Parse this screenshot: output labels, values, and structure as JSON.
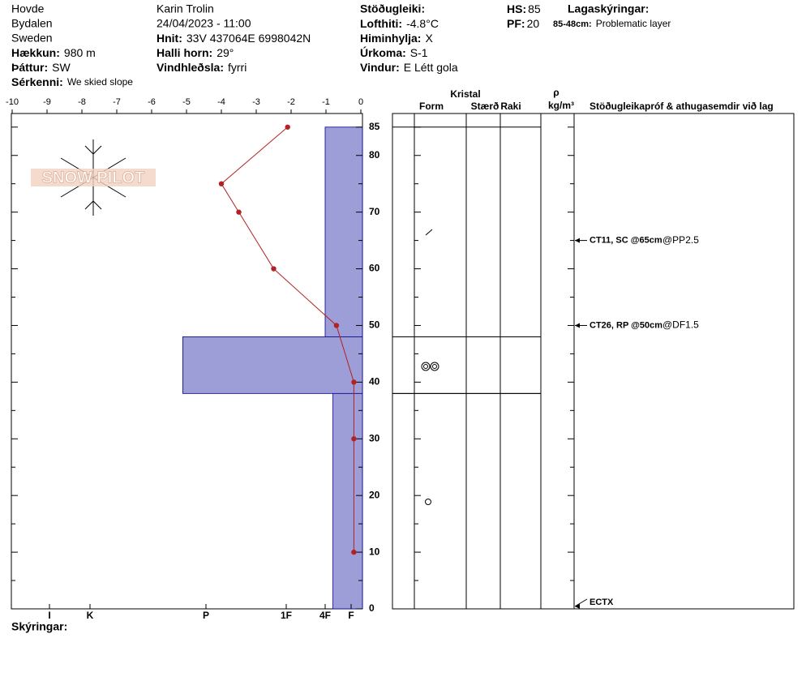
{
  "header": {
    "location": [
      "Hovde",
      "Bydalen",
      "Sweden"
    ],
    "observer": "Karin  Trolin",
    "datetime": "24/04/2023 - 11:00",
    "col1": [
      {
        "label": "Hækkun:",
        "value": "980 m"
      },
      {
        "label": "Þáttur:",
        "value": "SW"
      },
      {
        "label": "Sérkenni:",
        "value": "We skied slope"
      }
    ],
    "col2": [
      {
        "label": "Hnit:",
        "value": "33V 437064E 6998042N"
      },
      {
        "label": "Halli horn:",
        "value": "29°"
      },
      {
        "label": "Vindhleðsla:",
        "value": "fyrri"
      }
    ],
    "stability_label": "Stöðugleiki:",
    "col3": [
      {
        "label": "Lofthiti:",
        "value": "-4.8°C"
      },
      {
        "label": "Himinhylja:",
        "value": "X"
      },
      {
        "label": "Úrkoma:",
        "value": "S-1"
      },
      {
        "label": "Vindur:",
        "value": "E Létt gola"
      }
    ],
    "hs": {
      "label": "HS:",
      "value": 85
    },
    "pf": {
      "label": "PF:",
      "value": 20
    },
    "legend_title": "Lagaskýringar:",
    "notes": [
      {
        "label": "85-48cm:",
        "value": "Problematic layer"
      }
    ]
  },
  "logo": "SNOW PILOT",
  "chart_data": [
    {
      "type": "line",
      "heights": [
        85,
        75,
        70,
        60,
        50,
        40,
        30,
        10
      ],
      "values": [
        -2.1,
        -4,
        -3.5,
        -2.5,
        -0.7,
        -0.2,
        -0.2,
        -0.2
      ],
      "color": "#b22222",
      "xlim": [
        -10,
        0
      ],
      "xticks": [
        -10,
        -9,
        -8,
        -7,
        -6,
        -5,
        -4,
        -3,
        -2,
        -1,
        0
      ],
      "ylim": [
        0,
        87.4
      ],
      "yticks": [
        0,
        10,
        20,
        30,
        40,
        50,
        60,
        70,
        80,
        85
      ],
      "minor_yticks": [
        5,
        15,
        25,
        35,
        45,
        55,
        65,
        75
      ]
    },
    {
      "type": "hardness",
      "color": "#9d9dd8",
      "layers": [
        {
          "top": 85,
          "bottom": 48,
          "hardness": 2
        },
        {
          "top": 48,
          "bottom": 38,
          "hardness": 4.2
        },
        {
          "top": 38,
          "bottom": 0,
          "hardness": 1.7
        }
      ],
      "hardness_ticks": [
        {
          "value": 6,
          "label": "I"
        },
        {
          "value": 5,
          "label": "K"
        },
        {
          "value": 4,
          "label": "P"
        },
        {
          "value": 3,
          "label": "1F"
        },
        {
          "value": 2,
          "label": "4F"
        },
        {
          "value": 1,
          "label": "F"
        }
      ]
    }
  ],
  "layer_table": {
    "crystal": "Kristal",
    "form": "Form",
    "size": "Stærð",
    "moisture": "Raki",
    "rho": "ρ",
    "density_unit": "kg/m³",
    "tests_title": "Stöðugleikapróf & athugasemdir við lag",
    "tests": [
      {
        "height": 65,
        "test": "CT11, SC @65cm",
        "note": "@PP2.5"
      },
      {
        "height": 50,
        "test": "CT26, RP @50cm",
        "note": "@DF1.5"
      },
      {
        "height": 0,
        "test": "ECTX"
      }
    ]
  },
  "footer": "Skýringar:"
}
